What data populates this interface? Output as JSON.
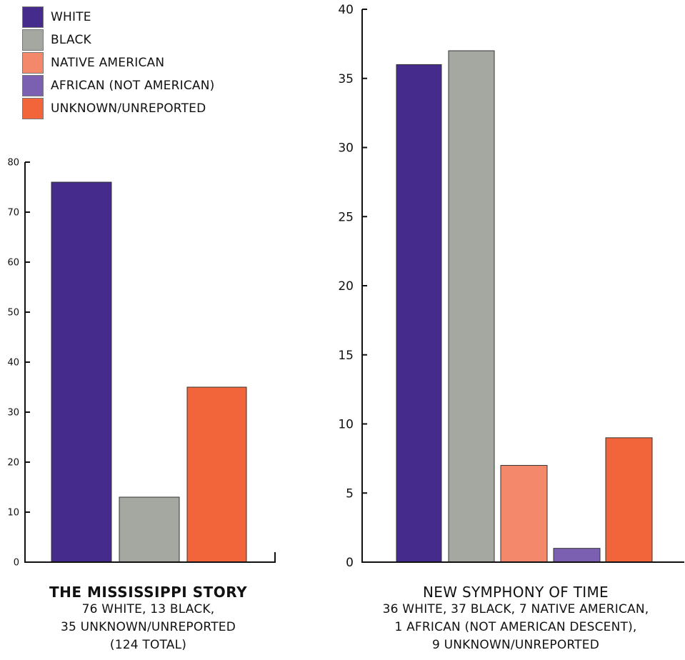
{
  "legend": [
    {
      "label": "WHITE",
      "color": "#452b8c"
    },
    {
      "label": "BLACK",
      "color": "#a5a8a0"
    },
    {
      "label": "NATIVE AMERICAN",
      "color": "#f4886b"
    },
    {
      "label": "AFRICAN (NOT AMERICAN)",
      "color": "#7b5fb0"
    },
    {
      "label": "UNKNOWN/UNREPORTED",
      "color": "#f2643a"
    }
  ],
  "chart_data": [
    {
      "type": "bar",
      "title": "THE MISSISSIPPI STORY",
      "caption_lines": [
        "76 WHITE, 13 BLACK,",
        "35 UNKNOWN/UNREPORTED",
        "(124 TOTAL)"
      ],
      "categories": [
        "WHITE",
        "BLACK",
        "UNKNOWN/UNREPORTED"
      ],
      "values": [
        76,
        13,
        35
      ],
      "colors": [
        "#452b8c",
        "#a5a8a0",
        "#f2643a"
      ],
      "ylim": [
        0,
        80
      ],
      "yticks": [
        0,
        10,
        20,
        30,
        40,
        50,
        60,
        70,
        80
      ],
      "xlabel": "",
      "ylabel": "",
      "grid": false
    },
    {
      "type": "bar",
      "title": "NEW SYMPHONY OF TIME",
      "caption_lines": [
        "36 WHITE, 37 BLACK, 7 NATIVE AMERICAN,",
        "1 AFRICAN (NOT AMERICAN DESCENT),",
        "9 UNKNOWN/UNREPORTED"
      ],
      "categories": [
        "WHITE",
        "BLACK",
        "NATIVE AMERICAN",
        "AFRICAN (NOT AMERICAN)",
        "UNKNOWN/UNREPORTED"
      ],
      "values": [
        36,
        37,
        7,
        1,
        9
      ],
      "colors": [
        "#452b8c",
        "#a5a8a0",
        "#f4886b",
        "#7b5fb0",
        "#f2643a"
      ],
      "ylim": [
        0,
        40
      ],
      "yticks": [
        0,
        5,
        10,
        15,
        20,
        25,
        30,
        35,
        40
      ],
      "xlabel": "",
      "ylabel": "",
      "grid": false
    }
  ]
}
